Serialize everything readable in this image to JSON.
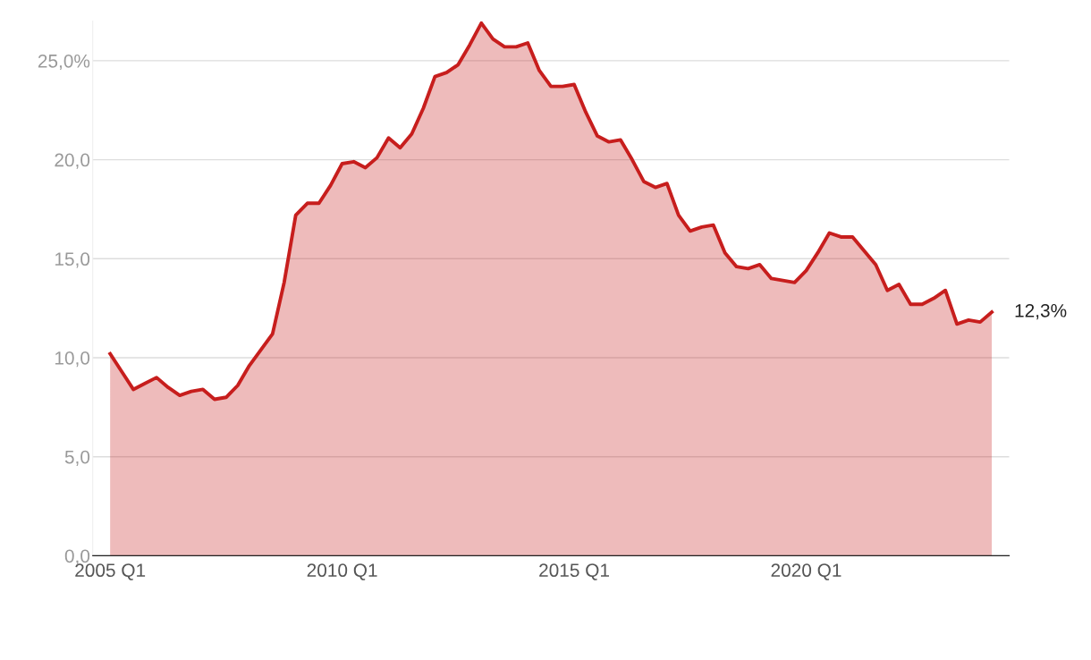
{
  "chart_data": {
    "type": "area",
    "categories": [
      "2005 Q1",
      null,
      null,
      null,
      null,
      null,
      null,
      null,
      null,
      null,
      null,
      null,
      null,
      null,
      null,
      null,
      null,
      null,
      null,
      null,
      "2010 Q1",
      null,
      null,
      null,
      null,
      null,
      null,
      null,
      null,
      null,
      null,
      null,
      null,
      null,
      null,
      null,
      null,
      null,
      null,
      null,
      "2015 Q1",
      null,
      null,
      null,
      null,
      null,
      null,
      null,
      null,
      null,
      null,
      null,
      null,
      null,
      null,
      null,
      null,
      null,
      null,
      null,
      "2020 Q1",
      null,
      null,
      null,
      null,
      null,
      null,
      null,
      null,
      null,
      null,
      null,
      null,
      null,
      null,
      null,
      null
    ],
    "series": [
      {
        "color": "#c71e1d",
        "values": [
          10.2,
          9.3,
          8.4,
          8.7,
          9.0,
          8.5,
          8.1,
          8.3,
          8.4,
          7.9,
          8.0,
          8.6,
          9.6,
          10.4,
          11.2,
          13.8,
          17.2,
          17.8,
          17.8,
          18.7,
          19.8,
          19.9,
          19.6,
          20.1,
          21.1,
          20.6,
          21.3,
          22.6,
          24.2,
          24.4,
          24.8,
          25.8,
          26.9,
          26.1,
          25.7,
          25.7,
          25.9,
          24.5,
          23.7,
          23.7,
          23.8,
          22.4,
          21.2,
          20.9,
          21.0,
          20.0,
          18.9,
          18.6,
          18.8,
          17.2,
          16.4,
          16.6,
          16.7,
          15.3,
          14.6,
          14.5,
          14.7,
          14.0,
          13.9,
          13.8,
          14.4,
          15.3,
          16.3,
          16.1,
          16.1,
          15.4,
          14.7,
          13.4,
          13.7,
          12.7,
          12.7,
          13.0,
          13.4,
          11.7,
          11.9,
          11.8,
          12.3
        ],
        "value_labels": [
          null,
          null,
          null,
          null,
          null,
          null,
          null,
          null,
          null,
          null,
          null,
          null,
          null,
          null,
          null,
          null,
          null,
          null,
          null,
          null,
          null,
          null,
          null,
          null,
          null,
          null,
          null,
          null,
          null,
          null,
          null,
          null,
          null,
          null,
          null,
          null,
          null,
          null,
          null,
          null,
          null,
          null,
          null,
          null,
          null,
          null,
          null,
          null,
          null,
          null,
          null,
          null,
          null,
          null,
          null,
          null,
          null,
          null,
          null,
          null,
          null,
          null,
          null,
          null,
          null,
          null,
          null,
          null,
          null,
          null,
          null,
          null,
          null,
          null,
          null,
          null,
          "12,3%"
        ]
      }
    ],
    "ylim": [
      0,
      27
    ],
    "yticks": [
      {
        "value": 0,
        "label": "0,0"
      },
      {
        "value": 5,
        "label": "5,0"
      },
      {
        "value": 10,
        "label": "10,0"
      },
      {
        "value": 15,
        "label": "15,0"
      },
      {
        "value": 20,
        "label": "20,0"
      },
      {
        "value": 25,
        "label": "25,0%"
      }
    ],
    "grid": "y"
  }
}
